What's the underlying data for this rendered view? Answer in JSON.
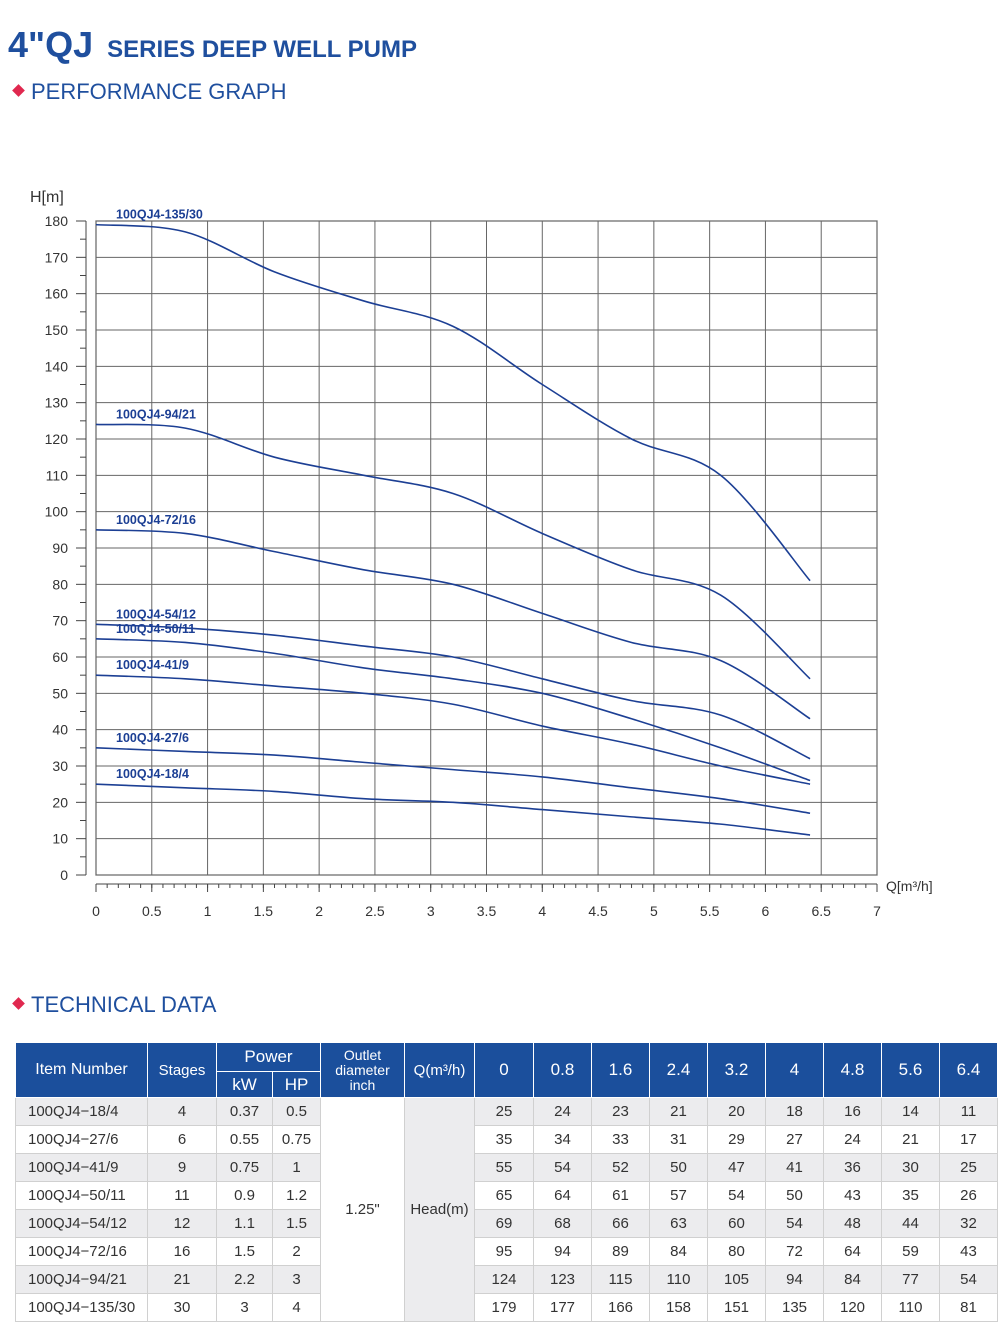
{
  "title": {
    "model": "4\"QJ",
    "text": "SERIES DEEP WELL PUMP"
  },
  "sections": {
    "graph": "PERFORMANCE GRAPH",
    "tech": "TECHNICAL DATA"
  },
  "colors": {
    "title": "#1f4f9e",
    "accent": "#e0284f",
    "curve": "#1c3f94",
    "header": "#1b4f9c"
  },
  "chart_data": {
    "type": "line",
    "xlabel": "Q[m³/h]",
    "ylabel": "H[m]",
    "xlim": [
      0,
      7
    ],
    "ylim": [
      0,
      180
    ],
    "grid": true,
    "xticks": [
      "0",
      "0.5",
      "1",
      "1.5",
      "2",
      "2.5",
      "3",
      "3.5",
      "4",
      "4.5",
      "5",
      "5.5",
      "6",
      "6.5",
      "7"
    ],
    "yticks": [
      "0",
      "10",
      "20",
      "30",
      "40",
      "50",
      "60",
      "70",
      "80",
      "90",
      "100",
      "110",
      "120",
      "130",
      "140",
      "150",
      "160",
      "170",
      "180"
    ],
    "x": [
      0,
      0.8,
      1.6,
      2.4,
      3.2,
      4,
      4.8,
      5.6,
      6.4
    ],
    "series": [
      {
        "name": "100QJ4-18/4",
        "values": [
          25,
          24,
          23,
          21,
          20,
          18,
          16,
          14,
          11
        ]
      },
      {
        "name": "100QJ4-27/6",
        "values": [
          35,
          34,
          33,
          31,
          29,
          27,
          24,
          21,
          17
        ]
      },
      {
        "name": "100QJ4-41/9",
        "values": [
          55,
          54,
          52,
          50,
          47,
          41,
          36,
          30,
          25
        ]
      },
      {
        "name": "100QJ4-50/11",
        "values": [
          65,
          64,
          61,
          57,
          54,
          50,
          43,
          35,
          26
        ]
      },
      {
        "name": "100QJ4-54/12",
        "values": [
          69,
          68,
          66,
          63,
          60,
          54,
          48,
          44,
          32
        ]
      },
      {
        "name": "100QJ4-72/16",
        "values": [
          95,
          94,
          89,
          84,
          80,
          72,
          64,
          59,
          43
        ]
      },
      {
        "name": "100QJ4-94/21",
        "values": [
          124,
          123,
          115,
          110,
          105,
          94,
          84,
          77,
          54
        ]
      },
      {
        "name": "100QJ4-135/30",
        "values": [
          179,
          177,
          166,
          158,
          151,
          135,
          120,
          110,
          81
        ]
      }
    ]
  },
  "table": {
    "headers": {
      "item": "Item Number",
      "stages": "Stages",
      "power": "Power",
      "kw": "kW",
      "hp": "HP",
      "outlet": "Outlet diameter inch",
      "q": "Q(m³/h)",
      "flows": [
        "0",
        "0.8",
        "1.6",
        "2.4",
        "3.2",
        "4",
        "4.8",
        "5.6",
        "6.4"
      ]
    },
    "outlet_value": "1.25\"",
    "head_label": "Head(m)",
    "rows": [
      {
        "item": "100QJ4−18/4",
        "stages": "4",
        "kw": "0.37",
        "hp": "0.5",
        "heads": [
          "25",
          "24",
          "23",
          "21",
          "20",
          "18",
          "16",
          "14",
          "11"
        ]
      },
      {
        "item": "100QJ4−27/6",
        "stages": "6",
        "kw": "0.55",
        "hp": "0.75",
        "heads": [
          "35",
          "34",
          "33",
          "31",
          "29",
          "27",
          "24",
          "21",
          "17"
        ]
      },
      {
        "item": "100QJ4−41/9",
        "stages": "9",
        "kw": "0.75",
        "hp": "1",
        "heads": [
          "55",
          "54",
          "52",
          "50",
          "47",
          "41",
          "36",
          "30",
          "25"
        ]
      },
      {
        "item": "100QJ4−50/11",
        "stages": "11",
        "kw": "0.9",
        "hp": "1.2",
        "heads": [
          "65",
          "64",
          "61",
          "57",
          "54",
          "50",
          "43",
          "35",
          "26"
        ]
      },
      {
        "item": "100QJ4−54/12",
        "stages": "12",
        "kw": "1.1",
        "hp": "1.5",
        "heads": [
          "69",
          "68",
          "66",
          "63",
          "60",
          "54",
          "48",
          "44",
          "32"
        ]
      },
      {
        "item": "100QJ4−72/16",
        "stages": "16",
        "kw": "1.5",
        "hp": "2",
        "heads": [
          "95",
          "94",
          "89",
          "84",
          "80",
          "72",
          "64",
          "59",
          "43"
        ]
      },
      {
        "item": "100QJ4−94/21",
        "stages": "21",
        "kw": "2.2",
        "hp": "3",
        "heads": [
          "124",
          "123",
          "115",
          "110",
          "105",
          "94",
          "84",
          "77",
          "54"
        ]
      },
      {
        "item": "100QJ4−135/30",
        "stages": "30",
        "kw": "3",
        "hp": "4",
        "heads": [
          "179",
          "177",
          "166",
          "158",
          "151",
          "135",
          "120",
          "110",
          "81"
        ]
      }
    ]
  }
}
